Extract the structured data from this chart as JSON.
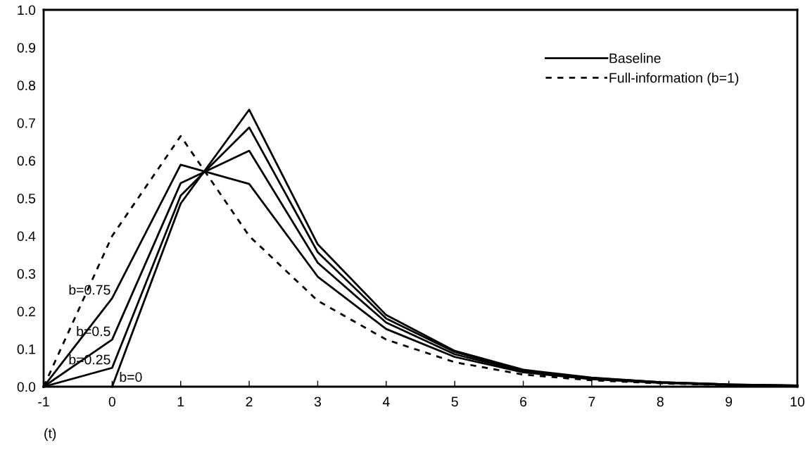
{
  "chart_data": {
    "type": "line",
    "xlabel": "(t)",
    "x": [
      -1,
      0,
      1,
      2,
      3,
      4,
      5,
      6,
      7,
      8,
      9,
      10
    ],
    "series": [
      {
        "name": "b=0",
        "color": "#000000",
        "line_style": "solid",
        "values": [
          null,
          0,
          0.486,
          0.735,
          0.378,
          0.19,
          0.095,
          0.045,
          0.024,
          0.012,
          0.006,
          0.003
        ]
      },
      {
        "name": "b=0.25",
        "color": "#000000",
        "line_style": "solid",
        "values": [
          0,
          0.05,
          0.507,
          0.688,
          0.357,
          0.181,
          0.092,
          0.043,
          0.023,
          0.012,
          0.006,
          0.003
        ]
      },
      {
        "name": "b=0.5",
        "color": "#000000",
        "line_style": "solid",
        "values": [
          0,
          0.125,
          0.54,
          0.626,
          0.329,
          0.17,
          0.086,
          0.041,
          0.022,
          0.011,
          0.005,
          0.003
        ]
      },
      {
        "name": "b=0.75",
        "color": "#000000",
        "line_style": "solid",
        "values": [
          0,
          0.235,
          0.589,
          0.538,
          0.292,
          0.153,
          0.079,
          0.038,
          0.02,
          0.01,
          0.005,
          0.002
        ]
      },
      {
        "name": "Full-information (b=1)",
        "color": "#000000",
        "line_style": "dashed",
        "values": [
          0,
          0.4,
          0.665,
          0.4,
          0.228,
          0.125,
          0.065,
          0.032,
          0.017,
          0.009,
          0.004,
          0.002
        ]
      }
    ],
    "annotations": [
      "Baseline"
    ],
    "xlim": [
      -1,
      10
    ],
    "xticks": [
      -1,
      0,
      1,
      2,
      3,
      4,
      5,
      6,
      7,
      8,
      9,
      10
    ],
    "ylim": [
      0,
      1.0
    ],
    "yticks": [
      {
        "value": 0,
        "label": "0.0"
      },
      {
        "value": 0.1,
        "label": "0.1"
      },
      {
        "value": 0.2,
        "label": "0.2"
      },
      {
        "value": 0.3,
        "label": "0.3"
      },
      {
        "value": 0.4,
        "label": "0.4"
      },
      {
        "value": 0.5,
        "label": "0.5"
      },
      {
        "value": 0.6,
        "label": "0.6"
      },
      {
        "value": 0.7,
        "label": "0.7"
      },
      {
        "value": 0.8,
        "label": "0.8"
      },
      {
        "value": 0.9,
        "label": "0.9"
      },
      {
        "value": 1.0,
        "label": "1.0"
      }
    ],
    "grid": false,
    "legend": "top right",
    "marker": "none"
  }
}
